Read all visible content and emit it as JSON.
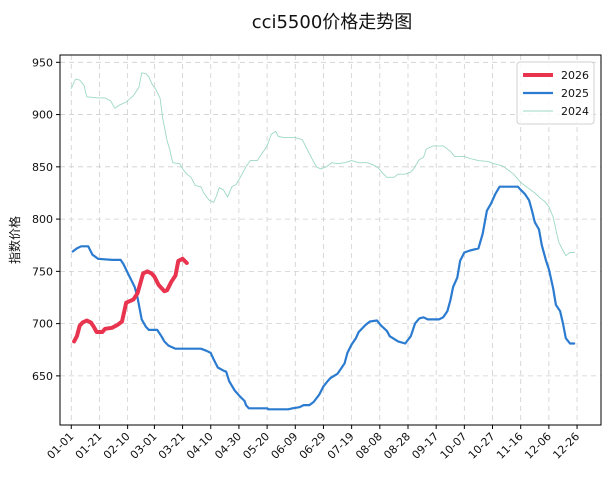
{
  "chart_data": {
    "type": "line",
    "title": "cci5500价格走势图",
    "xlabel": "",
    "ylabel": "指数价格",
    "x_tick_labels": [
      "01-01",
      "01-21",
      "02-10",
      "03-01",
      "03-21",
      "04-10",
      "04-30",
      "05-20",
      "06-09",
      "06-29",
      "07-19",
      "08-08",
      "08-28",
      "09-17",
      "10-07",
      "10-27",
      "11-16",
      "12-06",
      "12-26"
    ],
    "x_tick_days": [
      1,
      21,
      41,
      60,
      80,
      100,
      120,
      140,
      160,
      180,
      200,
      220,
      240,
      260,
      280,
      300,
      320,
      340,
      360
    ],
    "xlim": [
      -7,
      377
    ],
    "yticks": [
      650,
      700,
      750,
      800,
      850,
      900,
      950
    ],
    "ylim": [
      603,
      957
    ],
    "grid": true,
    "legend_position": "top-right",
    "series": [
      {
        "name": "2026",
        "color": "#e8344e",
        "width": 4,
        "points": [
          [
            3,
            683
          ],
          [
            5,
            688
          ],
          [
            7,
            698
          ],
          [
            9,
            701
          ],
          [
            12,
            703
          ],
          [
            15,
            701
          ],
          [
            17,
            697
          ],
          [
            19,
            692
          ],
          [
            23,
            692
          ],
          [
            25,
            695
          ],
          [
            30,
            696
          ],
          [
            34,
            699
          ],
          [
            37,
            702
          ],
          [
            40,
            720
          ],
          [
            45,
            723
          ],
          [
            48,
            729
          ],
          [
            52,
            748
          ],
          [
            55,
            750
          ],
          [
            58,
            748
          ],
          [
            60,
            745
          ],
          [
            63,
            737
          ],
          [
            67,
            731
          ],
          [
            69,
            732
          ],
          [
            72,
            740
          ],
          [
            75,
            746
          ],
          [
            77,
            760
          ],
          [
            80,
            762
          ],
          [
            83,
            758
          ]
        ]
      },
      {
        "name": "2025",
        "color": "#2b7bd0",
        "width": 2.2,
        "points": [
          [
            2,
            769
          ],
          [
            5,
            772
          ],
          [
            8,
            774
          ],
          [
            13,
            774
          ],
          [
            16,
            766
          ],
          [
            20,
            762
          ],
          [
            30,
            761
          ],
          [
            36,
            761
          ],
          [
            38,
            757
          ],
          [
            42,
            746
          ],
          [
            46,
            735
          ],
          [
            48,
            725
          ],
          [
            51,
            704
          ],
          [
            54,
            697
          ],
          [
            56,
            694
          ],
          [
            62,
            694
          ],
          [
            65,
            688
          ],
          [
            67,
            683
          ],
          [
            70,
            679
          ],
          [
            75,
            676
          ],
          [
            80,
            676
          ],
          [
            93,
            676
          ],
          [
            97,
            674
          ],
          [
            100,
            672
          ],
          [
            102,
            666
          ],
          [
            105,
            658
          ],
          [
            109,
            655
          ],
          [
            111,
            654
          ],
          [
            113,
            645
          ],
          [
            117,
            636
          ],
          [
            121,
            630
          ],
          [
            124,
            626
          ],
          [
            125,
            622
          ],
          [
            127,
            619
          ],
          [
            136,
            619
          ],
          [
            140,
            619
          ],
          [
            141,
            618
          ],
          [
            150,
            618
          ],
          [
            155,
            618
          ],
          [
            158,
            619
          ],
          [
            163,
            620
          ],
          [
            166,
            622
          ],
          [
            170,
            622
          ],
          [
            173,
            625
          ],
          [
            177,
            632
          ],
          [
            180,
            640
          ],
          [
            183,
            645
          ],
          [
            185,
            648
          ],
          [
            190,
            652
          ],
          [
            193,
            658
          ],
          [
            195,
            662
          ],
          [
            197,
            672
          ],
          [
            200,
            680
          ],
          [
            203,
            686
          ],
          [
            205,
            692
          ],
          [
            210,
            699
          ],
          [
            213,
            702
          ],
          [
            218,
            703
          ],
          [
            221,
            698
          ],
          [
            225,
            693
          ],
          [
            227,
            688
          ],
          [
            233,
            683
          ],
          [
            238,
            681
          ],
          [
            242,
            688
          ],
          [
            245,
            700
          ],
          [
            248,
            705
          ],
          [
            251,
            706
          ],
          [
            254,
            704
          ],
          [
            262,
            704
          ],
          [
            265,
            706
          ],
          [
            268,
            712
          ],
          [
            270,
            722
          ],
          [
            272,
            735
          ],
          [
            275,
            744
          ],
          [
            277,
            760
          ],
          [
            280,
            768
          ],
          [
            284,
            770
          ],
          [
            290,
            772
          ],
          [
            293,
            786
          ],
          [
            296,
            808
          ],
          [
            299,
            815
          ],
          [
            302,
            824
          ],
          [
            305,
            831
          ],
          [
            310,
            831
          ],
          [
            318,
            831
          ],
          [
            320,
            828
          ],
          [
            323,
            824
          ],
          [
            326,
            818
          ],
          [
            328,
            808
          ],
          [
            330,
            797
          ],
          [
            333,
            790
          ],
          [
            335,
            775
          ],
          [
            338,
            760
          ],
          [
            340,
            752
          ],
          [
            343,
            734
          ],
          [
            345,
            718
          ],
          [
            348,
            712
          ],
          [
            350,
            700
          ],
          [
            352,
            686
          ],
          [
            355,
            681
          ],
          [
            358,
            681
          ]
        ]
      },
      {
        "name": "2024",
        "color": "#9cd8c6",
        "width": 0.9,
        "points": [
          [
            1,
            925
          ],
          [
            4,
            934
          ],
          [
            7,
            933
          ],
          [
            10,
            928
          ],
          [
            12,
            917
          ],
          [
            20,
            916
          ],
          [
            25,
            916
          ],
          [
            29,
            913
          ],
          [
            32,
            906
          ],
          [
            35,
            909
          ],
          [
            40,
            912
          ],
          [
            45,
            918
          ],
          [
            49,
            926
          ],
          [
            51,
            940
          ],
          [
            54,
            939
          ],
          [
            56,
            936
          ],
          [
            58,
            930
          ],
          [
            61,
            924
          ],
          [
            64,
            916
          ],
          [
            66,
            896
          ],
          [
            69,
            875
          ],
          [
            71,
            866
          ],
          [
            73,
            854
          ],
          [
            78,
            853
          ],
          [
            80,
            848
          ],
          [
            83,
            843
          ],
          [
            86,
            840
          ],
          [
            89,
            832
          ],
          [
            93,
            831
          ],
          [
            95,
            825
          ],
          [
            99,
            818
          ],
          [
            102,
            816
          ],
          [
            104,
            822
          ],
          [
            106,
            830
          ],
          [
            109,
            828
          ],
          [
            112,
            821
          ],
          [
            115,
            831
          ],
          [
            118,
            833
          ],
          [
            121,
            840
          ],
          [
            125,
            850
          ],
          [
            128,
            856
          ],
          [
            133,
            856
          ],
          [
            136,
            862
          ],
          [
            140,
            870
          ],
          [
            143,
            881
          ],
          [
            146,
            884
          ],
          [
            148,
            879
          ],
          [
            152,
            878
          ],
          [
            160,
            878
          ],
          [
            165,
            876
          ],
          [
            168,
            868
          ],
          [
            171,
            860
          ],
          [
            175,
            850
          ],
          [
            178,
            848
          ],
          [
            182,
            850
          ],
          [
            186,
            854
          ],
          [
            190,
            853
          ],
          [
            195,
            854
          ],
          [
            200,
            856
          ],
          [
            205,
            854
          ],
          [
            211,
            854
          ],
          [
            215,
            852
          ],
          [
            219,
            849
          ],
          [
            222,
            844
          ],
          [
            225,
            840
          ],
          [
            230,
            840
          ],
          [
            233,
            843
          ],
          [
            238,
            843
          ],
          [
            242,
            845
          ],
          [
            244,
            848
          ],
          [
            248,
            857
          ],
          [
            251,
            859
          ],
          [
            253,
            867
          ],
          [
            258,
            870
          ],
          [
            265,
            870
          ],
          [
            270,
            865
          ],
          [
            273,
            860
          ],
          [
            280,
            860
          ],
          [
            284,
            858
          ],
          [
            290,
            856
          ],
          [
            297,
            855
          ],
          [
            301,
            853
          ],
          [
            307,
            851
          ],
          [
            310,
            848
          ],
          [
            315,
            843
          ],
          [
            320,
            835
          ],
          [
            325,
            830
          ],
          [
            330,
            825
          ],
          [
            334,
            820
          ],
          [
            337,
            817
          ],
          [
            340,
            812
          ],
          [
            343,
            802
          ],
          [
            345,
            790
          ],
          [
            347,
            778
          ],
          [
            350,
            770
          ],
          [
            352,
            765
          ],
          [
            355,
            768
          ],
          [
            358,
            768
          ]
        ]
      }
    ]
  }
}
